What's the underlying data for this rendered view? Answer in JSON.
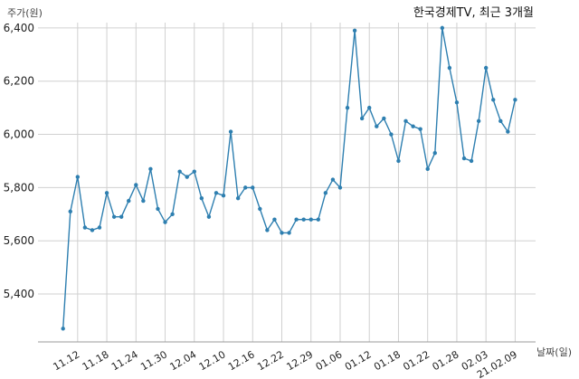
{
  "chart_data": {
    "type": "line",
    "title": "한국경제TV, 최근 3개월",
    "ylabel": "주가(원)",
    "xlabel": "날짜(일)",
    "ylim": [
      5220,
      6420
    ],
    "yticks": [
      5400,
      5600,
      5800,
      6000,
      6200,
      6400
    ],
    "ytick_labels": [
      "5,400",
      "5,600",
      "5,800",
      "6,000",
      "6,200",
      "6,400"
    ],
    "xtick_labels": [
      "11.12",
      "11.18",
      "11.24",
      "11.30",
      "12.04",
      "12.10",
      "12.16",
      "12.22",
      "12.29",
      "01.06",
      "01.12",
      "01.18",
      "01.22",
      "01.28",
      "02.03",
      "21.02.09"
    ],
    "xtick_index": [
      2,
      6,
      10,
      14,
      18,
      22,
      26,
      30,
      34,
      38,
      42,
      46,
      50,
      54,
      58,
      62
    ],
    "grid": true,
    "line_color": "#2e7fb0",
    "series": [
      {
        "values": [
          5270,
          5710,
          5840,
          5650,
          5640,
          5650,
          5780,
          5690,
          5690,
          5750,
          5810,
          5750,
          5870,
          5720,
          5670,
          5700,
          5860,
          5840,
          5860,
          5760,
          5690,
          5780,
          5770,
          6010,
          5760,
          5800,
          5800,
          5720,
          5640,
          5680,
          5630,
          5630,
          5680,
          5680,
          5680,
          5680,
          5780,
          5830,
          5800,
          6100,
          6390,
          6060,
          6100,
          6030,
          6060,
          6000,
          5900,
          6050,
          6030,
          6020,
          5870,
          5930,
          6400,
          6250,
          6120,
          5910,
          5900,
          6050,
          6250,
          6130,
          6050,
          6010,
          6130
        ]
      }
    ]
  }
}
